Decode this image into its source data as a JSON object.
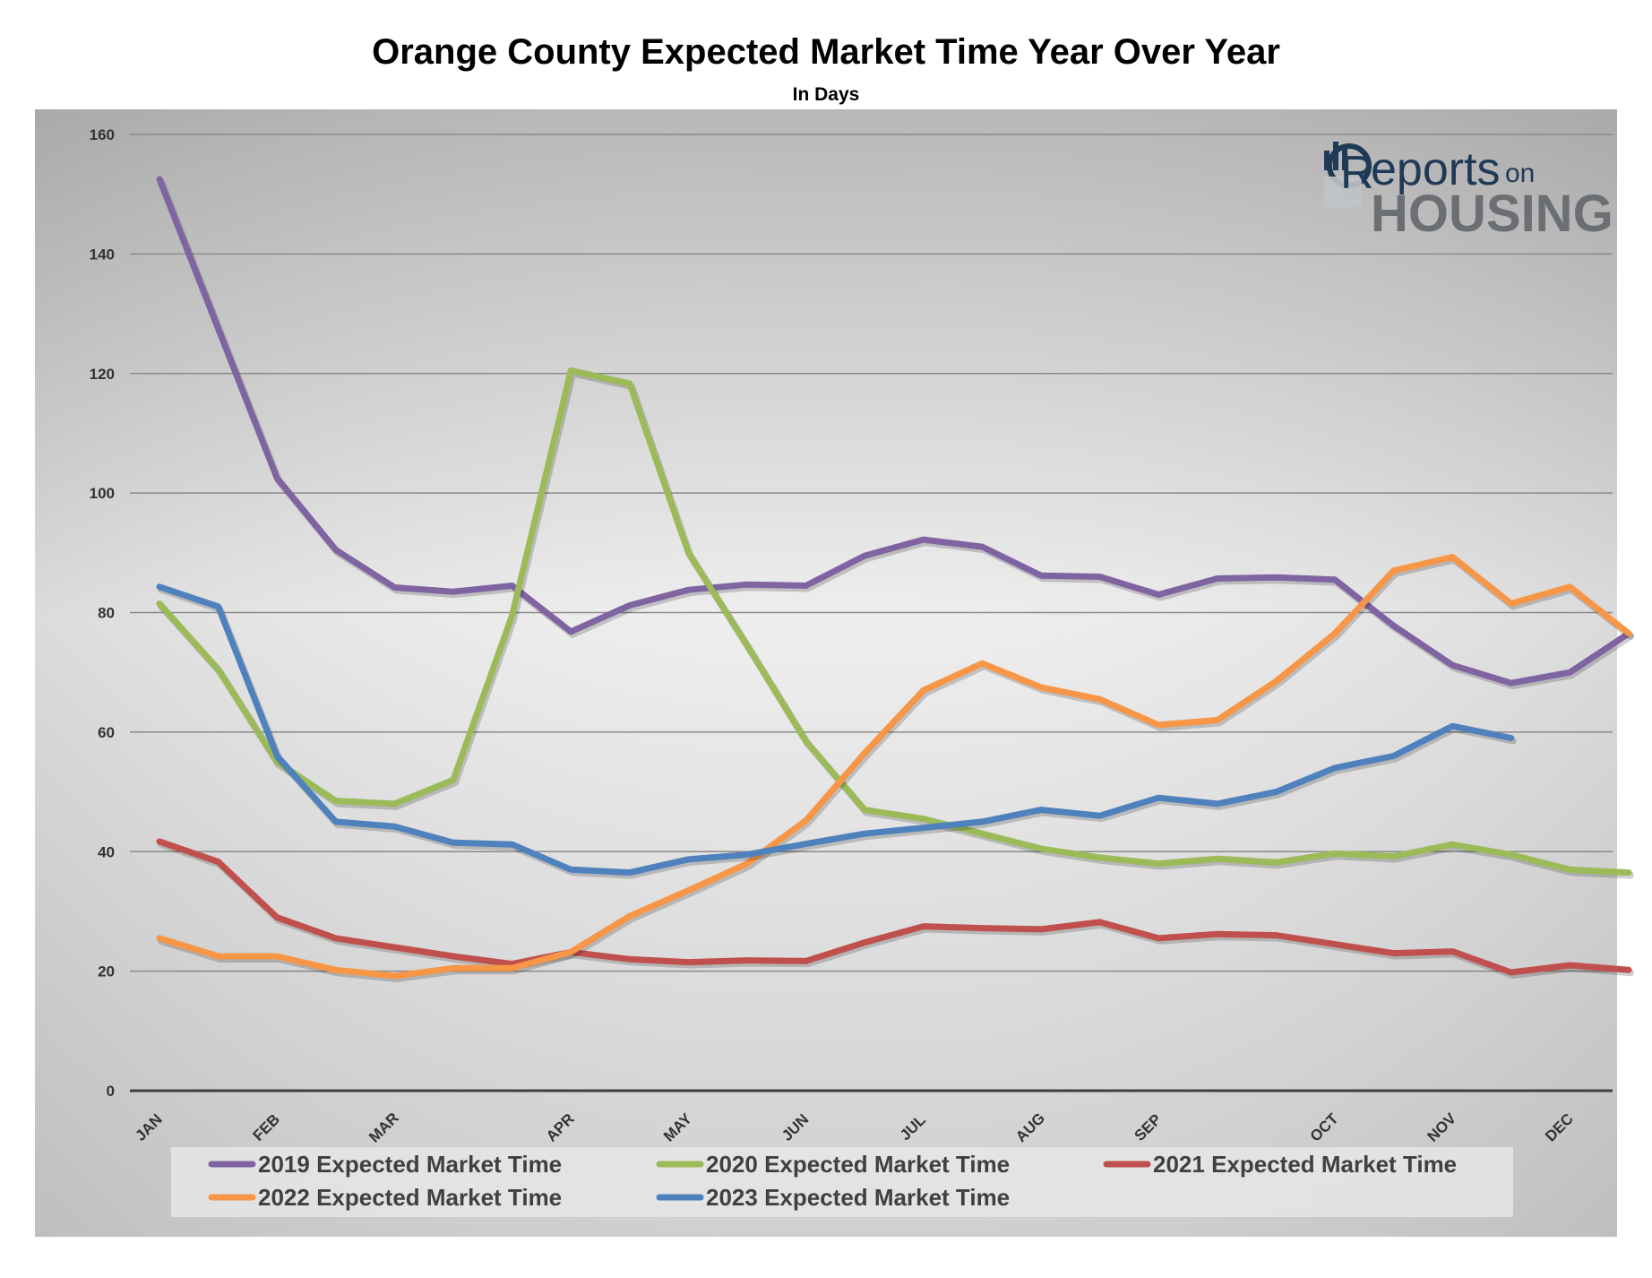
{
  "chart_data": {
    "type": "line",
    "title": "Orange County Expected Market Time Year Over Year",
    "subtitle": "In Days",
    "ylim": [
      0,
      160
    ],
    "yticks": [
      0,
      20,
      40,
      60,
      80,
      100,
      120,
      140,
      160
    ],
    "grid": true,
    "legend_position": "bottom",
    "month_labels": [
      "JAN",
      "FEB",
      "MAR",
      "APR",
      "MAY",
      "JUN",
      "JUL",
      "AUG",
      "SEP",
      "OCT",
      "NOV",
      "DEC"
    ],
    "month_label_index": [
      0,
      2,
      4,
      7,
      9,
      11,
      13,
      15,
      17,
      20,
      22,
      24
    ],
    "series": [
      {
        "name": "2019 Expected Market Time",
        "color": "#8064a2",
        "values": [
          152.5,
          127.5,
          102.5,
          90.5,
          84.2,
          83.5,
          84.5,
          76.8,
          81.2,
          83.8,
          84.7,
          84.5,
          89.5,
          92.2,
          91.0,
          86.2,
          86.0,
          83.0,
          85.7,
          85.9,
          85.5,
          77.8,
          71.2,
          68.2,
          70.0,
          76.5
        ]
      },
      {
        "name": "2020 Expected Market Time",
        "color": "#9bbb59",
        "values": [
          81.5,
          70.5,
          55.0,
          48.5,
          48.0,
          52.0,
          79.5,
          120.5,
          118.3,
          90.0,
          74.5,
          58.5,
          47.0,
          45.5,
          43.0,
          40.5,
          39.0,
          38.0,
          38.8,
          38.2,
          39.7,
          39.2,
          41.2,
          39.5,
          37.0,
          36.5
        ]
      },
      {
        "name": "2021 Expected Market Time",
        "color": "#c0504d",
        "values": [
          41.7,
          38.3,
          29.0,
          25.5,
          24.0,
          22.5,
          21.2,
          23.2,
          22.0,
          21.5,
          21.8,
          21.7,
          24.8,
          27.5,
          27.2,
          27.0,
          28.2,
          25.5,
          26.2,
          26.0,
          24.5,
          23.0,
          23.3,
          19.8,
          21.0,
          20.2
        ]
      },
      {
        "name": "2022 Expected Market Time",
        "color": "#f79646",
        "values": [
          25.5,
          22.5,
          22.5,
          20.2,
          19.2,
          20.5,
          20.5,
          23.2,
          29.2,
          33.5,
          38.0,
          45.2,
          56.5,
          67.0,
          71.5,
          67.5,
          65.5,
          61.2,
          62.0,
          68.5,
          76.5,
          87.0,
          89.3,
          81.5,
          84.3,
          76.5
        ]
      },
      {
        "name": "2023 Expected Market Time",
        "color": "#4f81bd",
        "values": [
          84.3,
          81.0,
          56.0,
          45.0,
          44.2,
          41.5,
          41.2,
          37.0,
          36.5,
          38.7,
          39.5,
          41.3,
          43.0,
          44.0,
          45.0,
          47.0,
          46.0,
          49.0,
          48.0,
          50.0,
          54.0,
          56.0,
          61.0,
          59.0
        ]
      }
    ]
  },
  "logo": {
    "line1": "eports",
    "line1_initial": "R",
    "on": "on",
    "line2": "HOUSING"
  }
}
